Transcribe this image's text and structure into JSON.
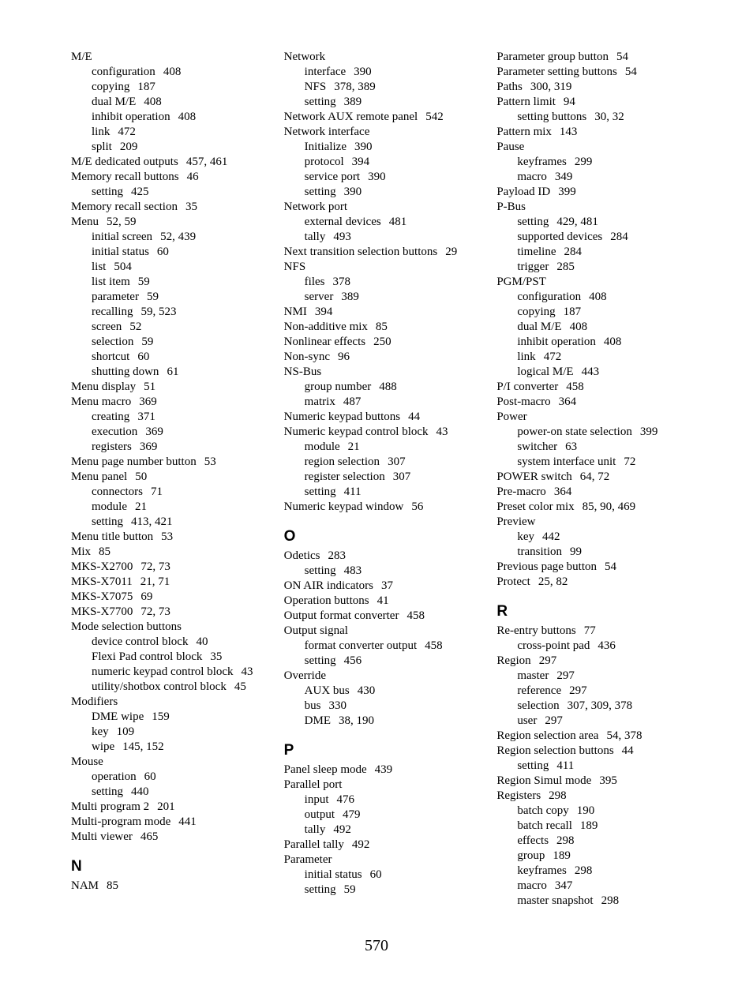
{
  "page_number": "570",
  "columns": [
    [
      {
        "type": "entry",
        "level": 0,
        "term": "M/E",
        "pages": ""
      },
      {
        "type": "entry",
        "level": 1,
        "term": "configuration",
        "pages": "408"
      },
      {
        "type": "entry",
        "level": 1,
        "term": "copying",
        "pages": "187"
      },
      {
        "type": "entry",
        "level": 1,
        "term": "dual M/E",
        "pages": "408"
      },
      {
        "type": "entry",
        "level": 1,
        "term": "inhibit operation",
        "pages": "408"
      },
      {
        "type": "entry",
        "level": 1,
        "term": "link",
        "pages": "472"
      },
      {
        "type": "entry",
        "level": 1,
        "term": "split",
        "pages": "209"
      },
      {
        "type": "entry",
        "level": 0,
        "term": "M/E dedicated outputs",
        "pages": "457, 461"
      },
      {
        "type": "entry",
        "level": 0,
        "term": "Memory recall buttons",
        "pages": "46"
      },
      {
        "type": "entry",
        "level": 1,
        "term": "setting",
        "pages": "425"
      },
      {
        "type": "entry",
        "level": 0,
        "term": "Memory recall section",
        "pages": "35"
      },
      {
        "type": "entry",
        "level": 0,
        "term": "Menu",
        "pages": "52, 59"
      },
      {
        "type": "entry",
        "level": 1,
        "term": "initial screen",
        "pages": "52, 439"
      },
      {
        "type": "entry",
        "level": 1,
        "term": "initial status",
        "pages": "60"
      },
      {
        "type": "entry",
        "level": 1,
        "term": "list",
        "pages": "504"
      },
      {
        "type": "entry",
        "level": 1,
        "term": "list item",
        "pages": "59"
      },
      {
        "type": "entry",
        "level": 1,
        "term": "parameter",
        "pages": "59"
      },
      {
        "type": "entry",
        "level": 1,
        "term": "recalling",
        "pages": "59, 523"
      },
      {
        "type": "entry",
        "level": 1,
        "term": "screen",
        "pages": "52"
      },
      {
        "type": "entry",
        "level": 1,
        "term": "selection",
        "pages": "59"
      },
      {
        "type": "entry",
        "level": 1,
        "term": "shortcut",
        "pages": "60"
      },
      {
        "type": "entry",
        "level": 1,
        "term": "shutting down",
        "pages": "61"
      },
      {
        "type": "entry",
        "level": 0,
        "term": "Menu display",
        "pages": "51"
      },
      {
        "type": "entry",
        "level": 0,
        "term": "Menu macro",
        "pages": "369"
      },
      {
        "type": "entry",
        "level": 1,
        "term": "creating",
        "pages": "371"
      },
      {
        "type": "entry",
        "level": 1,
        "term": "execution",
        "pages": "369"
      },
      {
        "type": "entry",
        "level": 1,
        "term": "registers",
        "pages": "369"
      },
      {
        "type": "entry",
        "level": 0,
        "term": "Menu page number button",
        "pages": "53"
      },
      {
        "type": "entry",
        "level": 0,
        "term": "Menu panel",
        "pages": "50"
      },
      {
        "type": "entry",
        "level": 1,
        "term": "connectors",
        "pages": "71"
      },
      {
        "type": "entry",
        "level": 1,
        "term": "module",
        "pages": "21"
      },
      {
        "type": "entry",
        "level": 1,
        "term": "setting",
        "pages": "413, 421"
      },
      {
        "type": "entry",
        "level": 0,
        "term": "Menu title button",
        "pages": "53"
      },
      {
        "type": "entry",
        "level": 0,
        "term": "Mix",
        "pages": "85"
      },
      {
        "type": "entry",
        "level": 0,
        "term": "MKS-X2700",
        "pages": "72, 73"
      },
      {
        "type": "entry",
        "level": 0,
        "term": "MKS-X7011",
        "pages": "21, 71"
      },
      {
        "type": "entry",
        "level": 0,
        "term": "MKS-X7075",
        "pages": "69"
      },
      {
        "type": "entry",
        "level": 0,
        "term": "MKS-X7700",
        "pages": "72, 73"
      },
      {
        "type": "entry",
        "level": 0,
        "term": "Mode selection buttons",
        "pages": ""
      },
      {
        "type": "entry",
        "level": 1,
        "term": "device control block",
        "pages": "40"
      },
      {
        "type": "entry",
        "level": 1,
        "term": "Flexi Pad control block",
        "pages": "35"
      },
      {
        "type": "entry",
        "level": 1,
        "term": "numeric keypad control block",
        "pages": "43"
      },
      {
        "type": "entry",
        "level": 1,
        "term": "utility/shotbox control block",
        "pages": "45"
      },
      {
        "type": "entry",
        "level": 0,
        "term": "Modifiers",
        "pages": ""
      },
      {
        "type": "entry",
        "level": 1,
        "term": "DME wipe",
        "pages": "159"
      },
      {
        "type": "entry",
        "level": 1,
        "term": "key",
        "pages": "109"
      },
      {
        "type": "entry",
        "level": 1,
        "term": "wipe",
        "pages": "145, 152"
      },
      {
        "type": "entry",
        "level": 0,
        "term": "Mouse",
        "pages": ""
      },
      {
        "type": "entry",
        "level": 1,
        "term": "operation",
        "pages": "60"
      },
      {
        "type": "entry",
        "level": 1,
        "term": "setting",
        "pages": "440"
      },
      {
        "type": "entry",
        "level": 0,
        "term": "Multi program 2",
        "pages": "201"
      },
      {
        "type": "entry",
        "level": 0,
        "term": "Multi-program mode",
        "pages": "441"
      },
      {
        "type": "entry",
        "level": 0,
        "term": "Multi viewer",
        "pages": "465"
      },
      {
        "type": "section",
        "letter": "N"
      },
      {
        "type": "entry",
        "level": 0,
        "term": "NAM",
        "pages": "85"
      }
    ],
    [
      {
        "type": "entry",
        "level": 0,
        "term": "Network",
        "pages": ""
      },
      {
        "type": "entry",
        "level": 1,
        "term": "interface",
        "pages": "390"
      },
      {
        "type": "entry",
        "level": 1,
        "term": "NFS",
        "pages": "378, 389"
      },
      {
        "type": "entry",
        "level": 1,
        "term": "setting",
        "pages": "389"
      },
      {
        "type": "entry",
        "level": 0,
        "term": "Network AUX remote panel",
        "pages": "542"
      },
      {
        "type": "entry",
        "level": 0,
        "term": "Network interface",
        "pages": ""
      },
      {
        "type": "entry",
        "level": 1,
        "term": "Initialize",
        "pages": "390"
      },
      {
        "type": "entry",
        "level": 1,
        "term": "protocol",
        "pages": "394"
      },
      {
        "type": "entry",
        "level": 1,
        "term": "service port",
        "pages": "390"
      },
      {
        "type": "entry",
        "level": 1,
        "term": "setting",
        "pages": "390"
      },
      {
        "type": "entry",
        "level": 0,
        "term": "Network port",
        "pages": ""
      },
      {
        "type": "entry",
        "level": 1,
        "term": "external devices",
        "pages": "481"
      },
      {
        "type": "entry",
        "level": 1,
        "term": "tally",
        "pages": "493"
      },
      {
        "type": "entry",
        "level": 0,
        "term": "Next transition selection buttons",
        "pages": "29"
      },
      {
        "type": "entry",
        "level": 0,
        "term": "NFS",
        "pages": ""
      },
      {
        "type": "entry",
        "level": 1,
        "term": "files",
        "pages": "378"
      },
      {
        "type": "entry",
        "level": 1,
        "term": "server",
        "pages": "389"
      },
      {
        "type": "entry",
        "level": 0,
        "term": "NMI",
        "pages": "394"
      },
      {
        "type": "entry",
        "level": 0,
        "term": "Non-additive mix",
        "pages": "85"
      },
      {
        "type": "entry",
        "level": 0,
        "term": "Nonlinear effects",
        "pages": "250"
      },
      {
        "type": "entry",
        "level": 0,
        "term": "Non-sync",
        "pages": "96"
      },
      {
        "type": "entry",
        "level": 0,
        "term": "NS-Bus",
        "pages": ""
      },
      {
        "type": "entry",
        "level": 1,
        "term": "group number",
        "pages": "488"
      },
      {
        "type": "entry",
        "level": 1,
        "term": "matrix",
        "pages": "487"
      },
      {
        "type": "entry",
        "level": 0,
        "term": "Numeric keypad buttons",
        "pages": "44"
      },
      {
        "type": "entry",
        "level": 0,
        "term": "Numeric keypad control block",
        "pages": "43"
      },
      {
        "type": "entry",
        "level": 1,
        "term": "module",
        "pages": "21"
      },
      {
        "type": "entry",
        "level": 1,
        "term": "region selection",
        "pages": "307"
      },
      {
        "type": "entry",
        "level": 1,
        "term": "register selection",
        "pages": "307"
      },
      {
        "type": "entry",
        "level": 1,
        "term": "setting",
        "pages": "411"
      },
      {
        "type": "entry",
        "level": 0,
        "term": "Numeric keypad window",
        "pages": "56"
      },
      {
        "type": "section",
        "letter": "O"
      },
      {
        "type": "entry",
        "level": 0,
        "term": "Odetics",
        "pages": "283"
      },
      {
        "type": "entry",
        "level": 1,
        "term": "setting",
        "pages": "483"
      },
      {
        "type": "entry",
        "level": 0,
        "term": "ON AIR indicators",
        "pages": "37"
      },
      {
        "type": "entry",
        "level": 0,
        "term": "Operation buttons",
        "pages": "41"
      },
      {
        "type": "entry",
        "level": 0,
        "term": "Output format converter",
        "pages": "458"
      },
      {
        "type": "entry",
        "level": 0,
        "term": "Output signal",
        "pages": ""
      },
      {
        "type": "entry",
        "level": 1,
        "term": "format converter output",
        "pages": "458"
      },
      {
        "type": "entry",
        "level": 1,
        "term": "setting",
        "pages": "456"
      },
      {
        "type": "entry",
        "level": 0,
        "term": "Override",
        "pages": ""
      },
      {
        "type": "entry",
        "level": 1,
        "term": "AUX bus",
        "pages": "430"
      },
      {
        "type": "entry",
        "level": 1,
        "term": "bus",
        "pages": "330"
      },
      {
        "type": "entry",
        "level": 1,
        "term": "DME",
        "pages": "38, 190"
      },
      {
        "type": "section",
        "letter": "P"
      },
      {
        "type": "entry",
        "level": 0,
        "term": "Panel sleep mode",
        "pages": "439"
      },
      {
        "type": "entry",
        "level": 0,
        "term": "Parallel port",
        "pages": ""
      },
      {
        "type": "entry",
        "level": 1,
        "term": "input",
        "pages": "476"
      },
      {
        "type": "entry",
        "level": 1,
        "term": "output",
        "pages": "479"
      },
      {
        "type": "entry",
        "level": 1,
        "term": "tally",
        "pages": "492"
      },
      {
        "type": "entry",
        "level": 0,
        "term": "Parallel tally",
        "pages": "492"
      },
      {
        "type": "entry",
        "level": 0,
        "term": "Parameter",
        "pages": ""
      },
      {
        "type": "entry",
        "level": 1,
        "term": "initial status",
        "pages": "60"
      },
      {
        "type": "entry",
        "level": 1,
        "term": "setting",
        "pages": "59"
      }
    ],
    [
      {
        "type": "entry",
        "level": 0,
        "term": "Parameter group button",
        "pages": "54"
      },
      {
        "type": "entry",
        "level": 0,
        "term": "Parameter setting buttons",
        "pages": "54"
      },
      {
        "type": "entry",
        "level": 0,
        "term": "Paths",
        "pages": "300, 319"
      },
      {
        "type": "entry",
        "level": 0,
        "term": "Pattern limit",
        "pages": "94"
      },
      {
        "type": "entry",
        "level": 1,
        "term": "setting buttons",
        "pages": "30, 32"
      },
      {
        "type": "entry",
        "level": 0,
        "term": "Pattern mix",
        "pages": "143"
      },
      {
        "type": "entry",
        "level": 0,
        "term": "Pause",
        "pages": ""
      },
      {
        "type": "entry",
        "level": 1,
        "term": "keyframes",
        "pages": "299"
      },
      {
        "type": "entry",
        "level": 1,
        "term": "macro",
        "pages": "349"
      },
      {
        "type": "entry",
        "level": 0,
        "term": "Payload ID",
        "pages": "399"
      },
      {
        "type": "entry",
        "level": 0,
        "term": "P-Bus",
        "pages": ""
      },
      {
        "type": "entry",
        "level": 1,
        "term": "setting",
        "pages": "429, 481"
      },
      {
        "type": "entry",
        "level": 1,
        "term": "supported devices",
        "pages": "284"
      },
      {
        "type": "entry",
        "level": 1,
        "term": "timeline",
        "pages": "284"
      },
      {
        "type": "entry",
        "level": 1,
        "term": "trigger",
        "pages": "285"
      },
      {
        "type": "entry",
        "level": 0,
        "term": "PGM/PST",
        "pages": ""
      },
      {
        "type": "entry",
        "level": 1,
        "term": "configuration",
        "pages": "408"
      },
      {
        "type": "entry",
        "level": 1,
        "term": "copying",
        "pages": "187"
      },
      {
        "type": "entry",
        "level": 1,
        "term": "dual M/E",
        "pages": "408"
      },
      {
        "type": "entry",
        "level": 1,
        "term": "inhibit operation",
        "pages": "408"
      },
      {
        "type": "entry",
        "level": 1,
        "term": "link",
        "pages": "472"
      },
      {
        "type": "entry",
        "level": 1,
        "term": "logical M/E",
        "pages": "443"
      },
      {
        "type": "entry",
        "level": 0,
        "term": "P/I converter",
        "pages": "458"
      },
      {
        "type": "entry",
        "level": 0,
        "term": "Post-macro",
        "pages": "364"
      },
      {
        "type": "entry",
        "level": 0,
        "term": "Power",
        "pages": ""
      },
      {
        "type": "entry",
        "level": 1,
        "term": "power-on state selection",
        "pages": "399"
      },
      {
        "type": "entry",
        "level": 1,
        "term": "switcher",
        "pages": "63"
      },
      {
        "type": "entry",
        "level": 1,
        "term": "system interface unit",
        "pages": "72"
      },
      {
        "type": "entry",
        "level": 0,
        "term": "POWER switch",
        "pages": "64, 72"
      },
      {
        "type": "entry",
        "level": 0,
        "term": "Pre-macro",
        "pages": "364"
      },
      {
        "type": "entry",
        "level": 0,
        "term": "Preset color mix",
        "pages": "85, 90, 469"
      },
      {
        "type": "entry",
        "level": 0,
        "term": "Preview",
        "pages": ""
      },
      {
        "type": "entry",
        "level": 1,
        "term": "key",
        "pages": "442"
      },
      {
        "type": "entry",
        "level": 1,
        "term": "transition",
        "pages": "99"
      },
      {
        "type": "entry",
        "level": 0,
        "term": "Previous page button",
        "pages": "54"
      },
      {
        "type": "entry",
        "level": 0,
        "term": "Protect",
        "pages": "25, 82"
      },
      {
        "type": "section",
        "letter": "R"
      },
      {
        "type": "entry",
        "level": 0,
        "term": "Re-entry buttons",
        "pages": "77"
      },
      {
        "type": "entry",
        "level": 1,
        "term": "cross-point pad",
        "pages": "436"
      },
      {
        "type": "entry",
        "level": 0,
        "term": "Region",
        "pages": "297"
      },
      {
        "type": "entry",
        "level": 1,
        "term": "master",
        "pages": "297"
      },
      {
        "type": "entry",
        "level": 1,
        "term": "reference",
        "pages": "297"
      },
      {
        "type": "entry",
        "level": 1,
        "term": "selection",
        "pages": "307, 309, 378"
      },
      {
        "type": "entry",
        "level": 1,
        "term": "user",
        "pages": "297"
      },
      {
        "type": "entry",
        "level": 0,
        "term": "Region selection area",
        "pages": "54, 378"
      },
      {
        "type": "entry",
        "level": 0,
        "term": "Region selection buttons",
        "pages": "44"
      },
      {
        "type": "entry",
        "level": 1,
        "term": "setting",
        "pages": "411"
      },
      {
        "type": "entry",
        "level": 0,
        "term": "Region Simul mode",
        "pages": "395"
      },
      {
        "type": "entry",
        "level": 0,
        "term": "Registers",
        "pages": "298"
      },
      {
        "type": "entry",
        "level": 1,
        "term": "batch copy",
        "pages": "190"
      },
      {
        "type": "entry",
        "level": 1,
        "term": "batch recall",
        "pages": "189"
      },
      {
        "type": "entry",
        "level": 1,
        "term": "effects",
        "pages": "298"
      },
      {
        "type": "entry",
        "level": 1,
        "term": "group",
        "pages": "189"
      },
      {
        "type": "entry",
        "level": 1,
        "term": "keyframes",
        "pages": "298"
      },
      {
        "type": "entry",
        "level": 1,
        "term": "macro",
        "pages": "347"
      },
      {
        "type": "entry",
        "level": 1,
        "term": "master snapshot",
        "pages": "298"
      }
    ]
  ]
}
